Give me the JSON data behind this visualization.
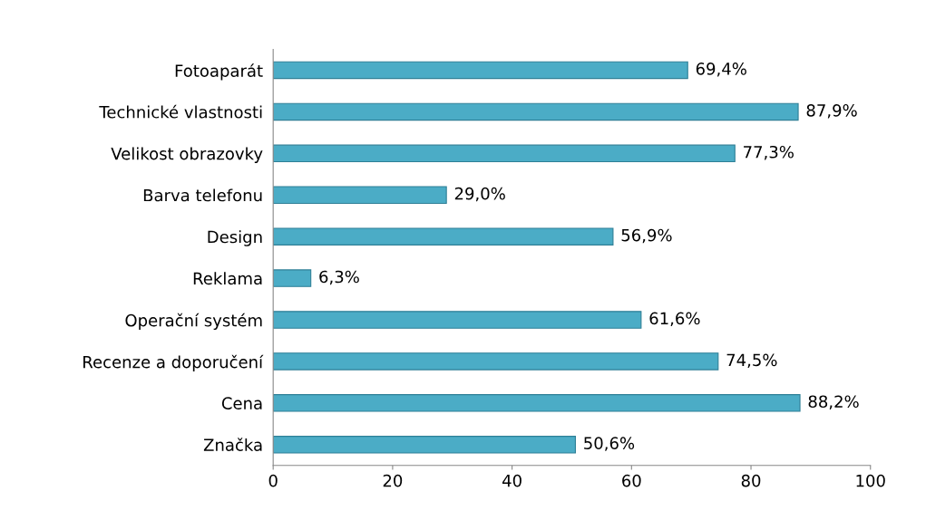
{
  "chart_data": {
    "type": "bar",
    "orientation": "horizontal",
    "categories": [
      "Fotoaparát",
      "Technické vlastnosti",
      "Velikost obrazovky",
      "Barva telefonu",
      "Design",
      "Reklama",
      "Operační systém",
      "Recenze a doporučení",
      "Cena",
      "Značka"
    ],
    "values": [
      69.4,
      87.9,
      77.3,
      29.0,
      56.9,
      6.3,
      61.6,
      74.5,
      88.2,
      50.6
    ],
    "value_labels": [
      "69,4%",
      "87,9%",
      "77,3%",
      "29,0%",
      "56,9%",
      "6,3%",
      "61,6%",
      "74,5%",
      "88,2%",
      "50,6%"
    ],
    "color": "#4bacc6",
    "xlim": [
      0,
      100
    ],
    "xticks": [
      0,
      20,
      40,
      60,
      80,
      100
    ],
    "grid": false,
    "legend": false
  }
}
